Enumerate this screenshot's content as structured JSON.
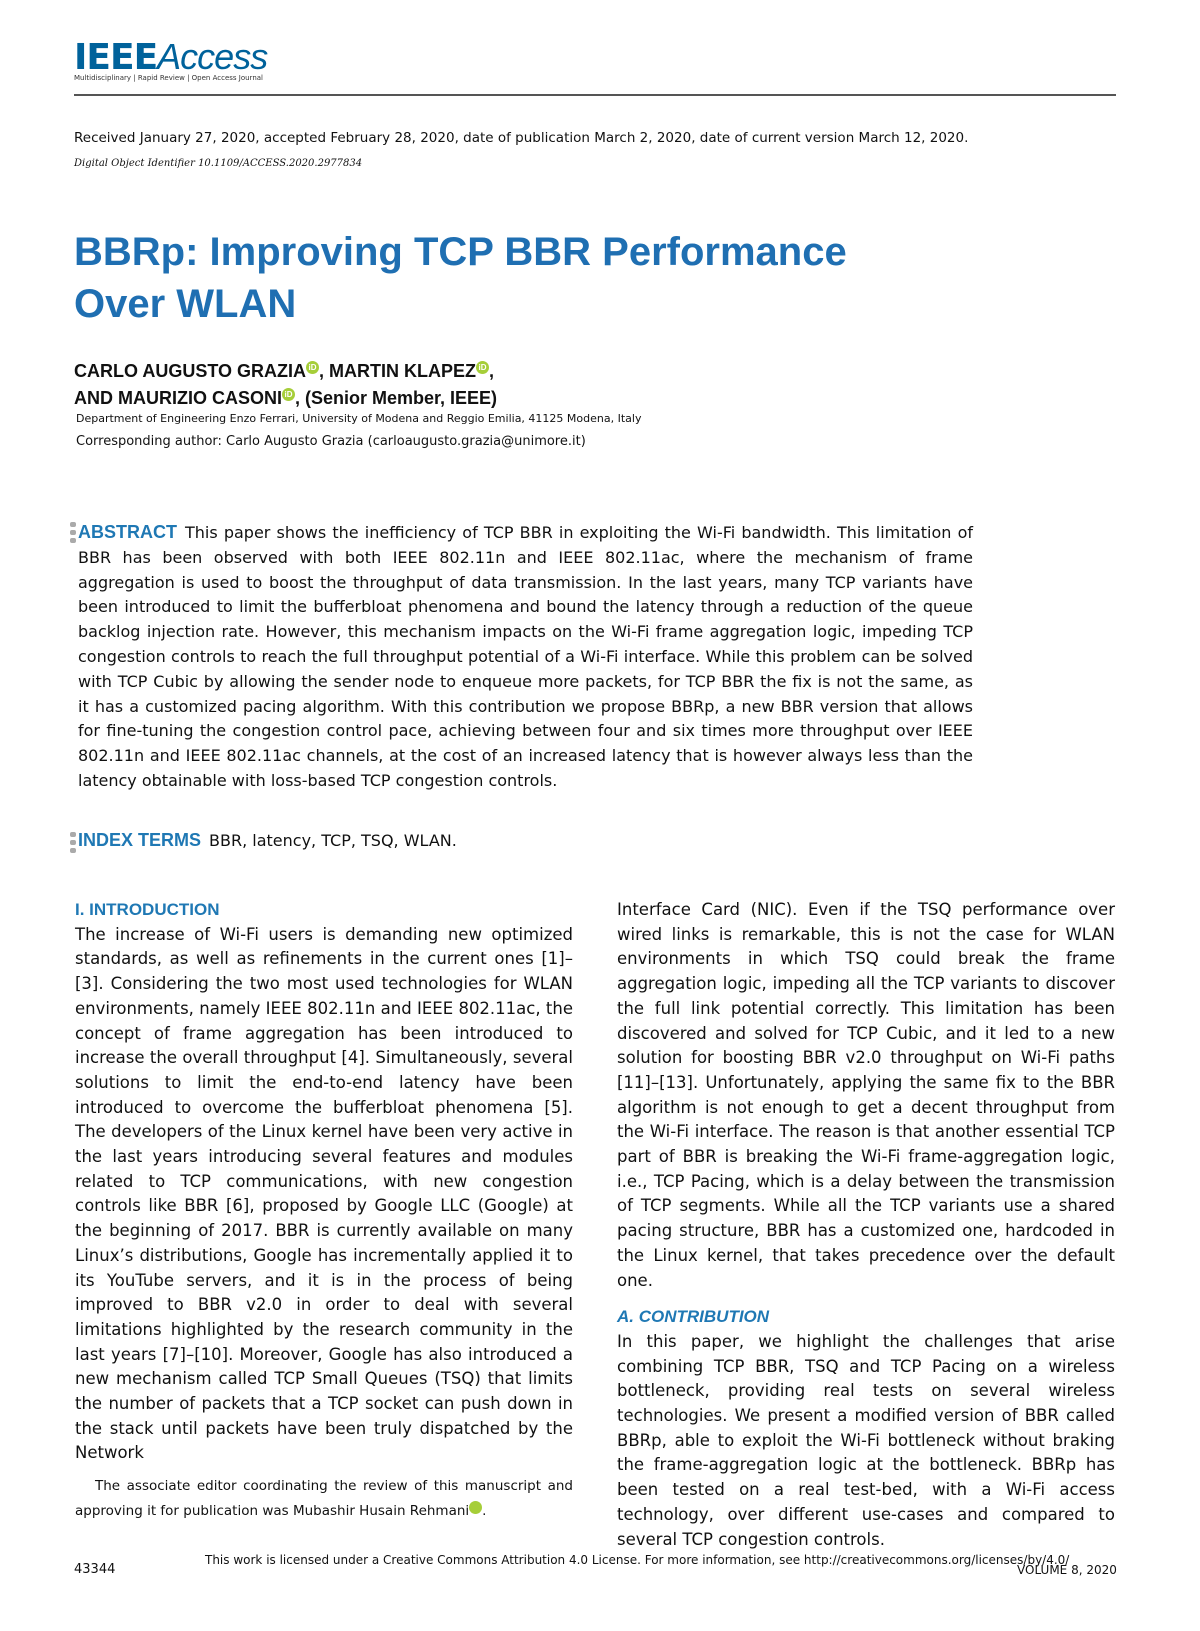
{
  "header": {
    "logo_bold": "IEEE",
    "logo_light": "Access",
    "tagline": "Multidisciplinary | Rapid Review | Open Access Journal",
    "received": "Received January 27, 2020, accepted February 28, 2020, date of publication March 2, 2020, date of current version March 12, 2020.",
    "doi": "Digital Object Identifier 10.1109/ACCESS.2020.2977834"
  },
  "title": "BBRp: Improving TCP BBR Performance Over WLAN",
  "authors": {
    "line1a": "CARLO AUGUSTO GRAZIA",
    "line1b": ", MARTIN KLAPEZ",
    "line1c": ",",
    "line2a": "AND MAURIZIO CASONI",
    "line2b": ", (Senior Member, IEEE)",
    "affiliation": "Department of Engineering Enzo Ferrari, University of Modena and Reggio Emilia, 41125 Modena, Italy",
    "corresponding": "Corresponding author: Carlo Augusto Grazia (carloaugusto.grazia@unimore.it)"
  },
  "abstract": {
    "label": "ABSTRACT",
    "text": "This paper shows the inefficiency of TCP BBR in exploiting the Wi-Fi bandwidth. This limitation of BBR has been observed with both IEEE 802.11n and IEEE 802.11ac, where the mechanism of frame aggregation is used to boost the throughput of data transmission. In the last years, many TCP variants have been introduced to limit the bufferbloat phenomena and bound the latency through a reduction of the queue backlog injection rate. However, this mechanism impacts on the Wi-Fi frame aggregation logic, impeding TCP congestion controls to reach the full throughput potential of a Wi-Fi interface. While this problem can be solved with TCP Cubic by allowing the sender node to enqueue more packets, for TCP BBR the fix is not the same, as it has a customized pacing algorithm. With this contribution we propose BBRp, a new BBR version that allows for fine-tuning the congestion control pace, achieving between four and six times more throughput over IEEE 802.11n and IEEE 802.11ac channels, at the cost of an increased latency that is however always less than the latency obtainable with loss-based TCP congestion controls."
  },
  "index_terms": {
    "label": "INDEX TERMS",
    "text": "BBR, latency, TCP, TSQ, WLAN."
  },
  "body": {
    "intro_heading": "I. INTRODUCTION",
    "intro_p1": "The increase of Wi-Fi users is demanding new optimized standards, as well as refinements in the current ones [1]–[3]. Considering the two most used technologies for WLAN environments, namely IEEE 802.11n and IEEE 802.11ac, the concept of frame aggregation has been introduced to increase the overall throughput [4]. Simultaneously, several solutions to limit the end-to-end latency have been introduced to overcome the bufferbloat phenomena [5]. The developers of the Linux kernel have been very active in the last years introducing several features and modules related to TCP communications, with new congestion controls like BBR [6], proposed by Google LLC (Google) at the beginning of 2017. BBR is currently available on many Linux’s distributions, Google has incrementally applied it to its YouTube servers, and it is in the process of being improved to BBR v2.0 in order to deal with several limitations highlighted by the research community in the last years [7]–[10]. Moreover, Google has also introduced a new mechanism called TCP Small Queues (TSQ) that limits the number of packets that a TCP socket can push down in the stack until packets have been truly dispatched by the Network",
    "intro_p1_cont": "Interface Card (NIC). Even if the TSQ performance over wired links is remarkable, this is not the case for WLAN environments in which TSQ could break the frame aggregation logic, impeding all the TCP variants to discover the full link potential correctly. This limitation has been discovered and solved for TCP Cubic, and it led to a new solution for boosting BBR v2.0 throughput on Wi-Fi paths [11]–[13]. Unfortunately, applying the same fix to the BBR algorithm is not enough to get a decent throughput from the Wi-Fi interface. The reason is that another essential TCP part of BBR is breaking the Wi-Fi frame-aggregation logic, i.e., TCP Pacing, which is a delay between the transmission of TCP segments. While all the TCP variants use a shared pacing structure, BBR has a customized one, hardcoded in the Linux kernel, that takes precedence over the default one.",
    "contrib_heading": "A. CONTRIBUTION",
    "contrib_p1": "In this paper, we highlight the challenges that arise combining TCP BBR, TSQ and TCP Pacing on a wireless bottleneck, providing real tests on several wireless technologies. We present a modified version of BBR called BBRp, able to exploit the Wi-Fi bottleneck without braking the frame-aggregation logic at the bottleneck. BBRp has been tested on a real test-bed, with a Wi-Fi access technology, over different use-cases and compared to several TCP congestion controls.",
    "footnote": "The associate editor coordinating the review of this manuscript and approving it for publication was Mubashir Husain Rehmani"
  },
  "footer": {
    "page_number": "43344",
    "license": "This work is licensed under a Creative Commons Attribution 4.0 License. For more information, see http://creativecommons.org/licenses/by/4.0/",
    "volume": "VOLUME 8, 2020"
  },
  "colors": {
    "ieee_blue": "#00629b",
    "heading_blue": "#1f78b4",
    "orcid_green": "#a6ce39"
  },
  "icons": [
    "orcid-icon"
  ]
}
